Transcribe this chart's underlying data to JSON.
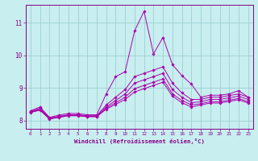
{
  "background_color": "#c8eef0",
  "line_color": "#aa00aa",
  "grid_color": "#9dcfcf",
  "xlabel": "Windchill (Refroidissement éolien,°C)",
  "xlabel_color": "#880088",
  "tick_color": "#880088",
  "xlim": [
    -0.5,
    23.5
  ],
  "ylim": [
    7.75,
    11.55
  ],
  "yticks": [
    8,
    9,
    10,
    11
  ],
  "xticks": [
    0,
    1,
    2,
    3,
    4,
    5,
    6,
    7,
    8,
    9,
    10,
    11,
    12,
    13,
    14,
    15,
    16,
    17,
    18,
    19,
    20,
    21,
    22,
    23
  ],
  "lines": [
    [
      8.3,
      8.42,
      8.1,
      8.17,
      8.22,
      8.22,
      8.18,
      8.18,
      8.82,
      9.35,
      9.5,
      10.75,
      11.35,
      10.05,
      10.55,
      9.72,
      9.38,
      9.12,
      8.72,
      8.78,
      8.78,
      8.82,
      8.92,
      8.72
    ],
    [
      8.28,
      8.38,
      8.08,
      8.13,
      8.18,
      8.18,
      8.15,
      8.15,
      8.48,
      8.72,
      8.95,
      9.35,
      9.45,
      9.55,
      9.65,
      9.15,
      8.85,
      8.65,
      8.65,
      8.72,
      8.72,
      8.77,
      8.82,
      8.72
    ],
    [
      8.27,
      8.35,
      8.07,
      8.12,
      8.17,
      8.17,
      8.14,
      8.14,
      8.42,
      8.62,
      8.82,
      9.15,
      9.25,
      9.35,
      9.45,
      8.95,
      8.72,
      8.55,
      8.58,
      8.65,
      8.65,
      8.7,
      8.75,
      8.65
    ],
    [
      8.26,
      8.33,
      8.06,
      8.11,
      8.16,
      8.16,
      8.13,
      8.13,
      8.38,
      8.55,
      8.72,
      8.98,
      9.08,
      9.18,
      9.28,
      8.82,
      8.62,
      8.48,
      8.52,
      8.58,
      8.58,
      8.63,
      8.68,
      8.58
    ],
    [
      8.25,
      8.32,
      8.05,
      8.1,
      8.15,
      8.15,
      8.12,
      8.12,
      8.35,
      8.5,
      8.65,
      8.88,
      8.98,
      9.08,
      9.18,
      8.75,
      8.55,
      8.42,
      8.48,
      8.54,
      8.54,
      8.59,
      8.64,
      8.54
    ]
  ]
}
